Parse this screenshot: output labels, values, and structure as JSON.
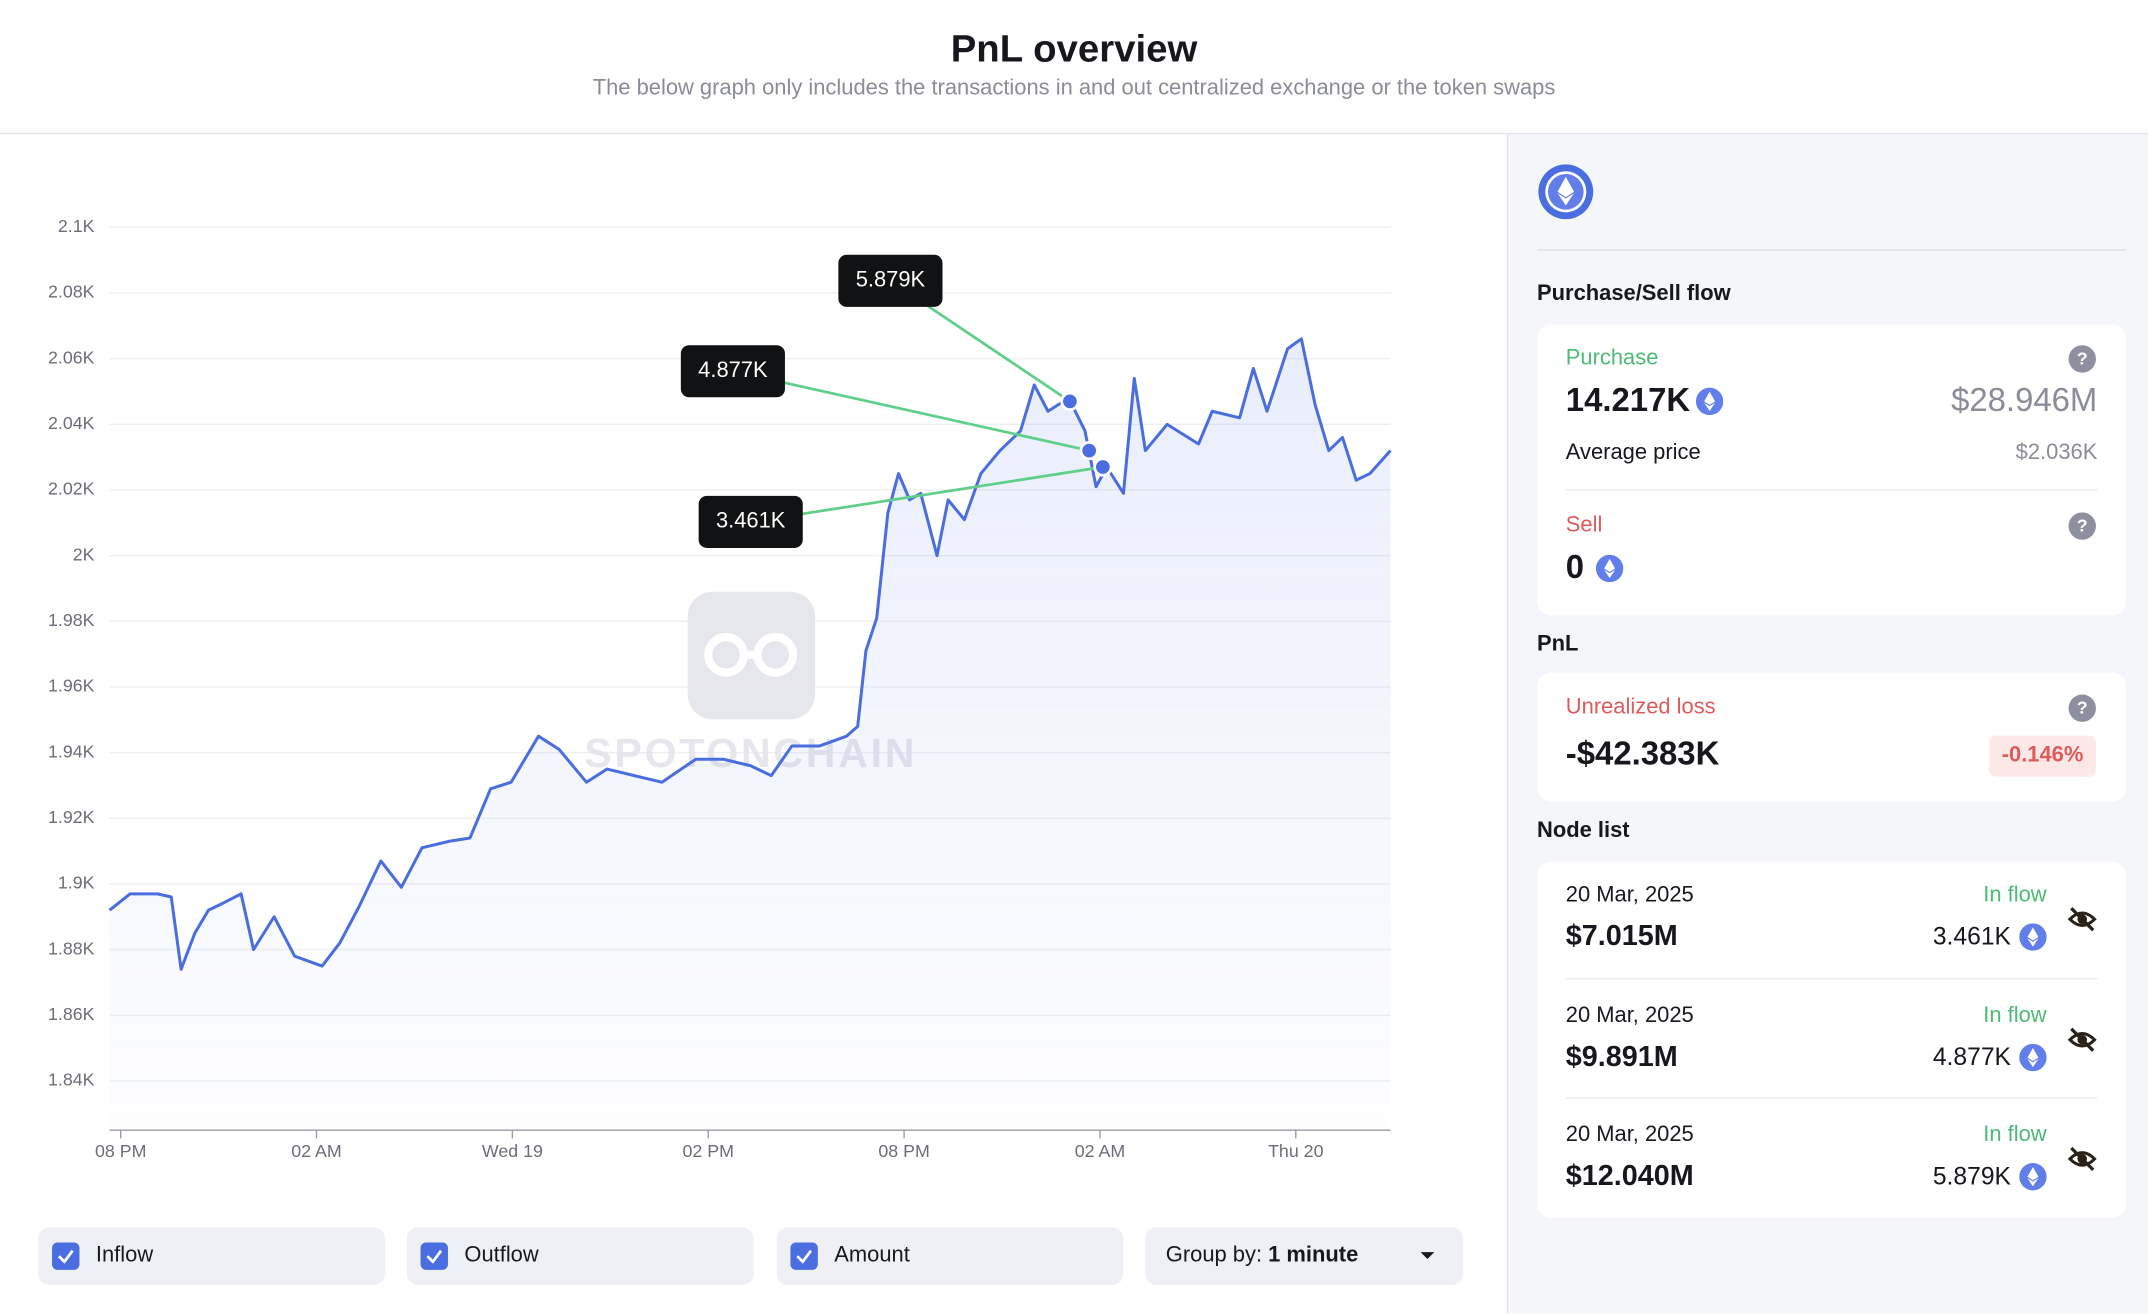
{
  "header": {
    "title": "PnL overview",
    "subtitle": "The below graph only includes the transactions in and out centralized exchange or the token swaps"
  },
  "chart_data": {
    "type": "line",
    "color": "#4a6ee0",
    "grid": true,
    "watermark": "SPOTONCHAIN",
    "x": [
      -0.34,
      0.29,
      1.13,
      1.55,
      1.85,
      2.27,
      2.69,
      3.11,
      3.69,
      4.07,
      4.7,
      5.33,
      6.17,
      6.71,
      7.3,
      7.97,
      8.6,
      9.23,
      10.07,
      10.7,
      11.33,
      11.96,
      12.8,
      13.43,
      14.27,
      14.9,
      15.74,
      16.58,
      17.62,
      18.46,
      19.3,
      19.93,
      20.56,
      21.4,
      22.24,
      22.58,
      22.83,
      23.16,
      23.5,
      23.83,
      24.17,
      24.51,
      25.01,
      25.35,
      25.85,
      26.35,
      26.94,
      27.57,
      27.99,
      28.41,
      29.04,
      29.54,
      29.88,
      30.21,
      30.72,
      31.05,
      31.39,
      32.06,
      33.02,
      33.44,
      34.28,
      34.7,
      35.12,
      35.75,
      36.17,
      36.59,
      37.01,
      37.43,
      37.85,
      38.27,
      38.9
    ],
    "values": [
      1892,
      1897,
      1897,
      1896,
      1874,
      1885,
      1892,
      1894,
      1897,
      1880,
      1890,
      1878,
      1875,
      1882,
      1893,
      1907,
      1899,
      1911,
      1913,
      1914,
      1929,
      1931,
      1945,
      1941,
      1931,
      1935,
      1933,
      1931,
      1938,
      1938,
      1936,
      1933,
      1942,
      1942,
      1945,
      1948,
      1971,
      1981,
      2013,
      2025,
      2017,
      2019,
      2000,
      2017,
      2011,
      2025,
      2032,
      2038,
      2052,
      2044,
      2048,
      2038,
      2021,
      2027,
      2019,
      2054,
      2032,
      2040,
      2034,
      2044,
      2042,
      2057,
      2044,
      2063,
      2066,
      2046,
      2032,
      2036,
      2023,
      2025,
      2032
    ],
    "xlim": [
      -0.34,
      38.9
    ],
    "xticks": [
      {
        "value": 0,
        "label": "08 PM"
      },
      {
        "value": 6,
        "label": "02 AM"
      },
      {
        "value": 12,
        "label": "Wed 19"
      },
      {
        "value": 18,
        "label": "02 PM"
      },
      {
        "value": 24,
        "label": "08 PM"
      },
      {
        "value": 30,
        "label": "02 AM"
      },
      {
        "value": 36,
        "label": "Thu 20"
      }
    ],
    "ylim": [
      1825,
      2110
    ],
    "yticks": [
      {
        "value": 1840,
        "label": "1.84K"
      },
      {
        "value": 1860,
        "label": "1.86K"
      },
      {
        "value": 1880,
        "label": "1.88K"
      },
      {
        "value": 1900,
        "label": "1.9K"
      },
      {
        "value": 1920,
        "label": "1.92K"
      },
      {
        "value": 1940,
        "label": "1.94K"
      },
      {
        "value": 1960,
        "label": "1.96K"
      },
      {
        "value": 1980,
        "label": "1.98K"
      },
      {
        "value": 2000,
        "label": "2K"
      },
      {
        "value": 2020,
        "label": "2.02K"
      },
      {
        "value": 2040,
        "label": "2.04K"
      },
      {
        "value": 2060,
        "label": "2.06K"
      },
      {
        "value": 2080,
        "label": "2.08K"
      },
      {
        "value": 2100,
        "label": "2.1K"
      }
    ],
    "annotations": [
      {
        "text": "5.879K",
        "x": 29.08,
        "y": 2047
      },
      {
        "text": "4.877K",
        "x": 29.67,
        "y": 2032
      },
      {
        "text": "3.461K",
        "x": 30.09,
        "y": 2027
      }
    ]
  },
  "controls": {
    "filters": [
      "Inflow",
      "Outflow",
      "Amount"
    ],
    "group_by_label": "Group by:",
    "group_by_value": "1 minute"
  },
  "sidebar": {
    "purchase_sell_title": "Purchase/Sell flow",
    "purchase": {
      "label": "Purchase",
      "amount": "14.217K",
      "usd": "$28.946M",
      "avg_label": "Average price",
      "avg_value": "$2.036K"
    },
    "sell": {
      "label": "Sell",
      "amount": "0"
    },
    "pnl_title": "PnL",
    "pnl": {
      "label": "Unrealized loss",
      "value": "-$42.383K",
      "percent": "-0.146%"
    },
    "node_list_title": "Node list",
    "nodes": [
      {
        "date": "20 Mar, 2025",
        "usd": "$7.015M",
        "flow": "In flow",
        "amount": "3.461K"
      },
      {
        "date": "20 Mar, 2025",
        "usd": "$9.891M",
        "flow": "In flow",
        "amount": "4.877K"
      },
      {
        "date": "20 Mar, 2025",
        "usd": "$12.040M",
        "flow": "In flow",
        "amount": "5.879K"
      }
    ]
  }
}
